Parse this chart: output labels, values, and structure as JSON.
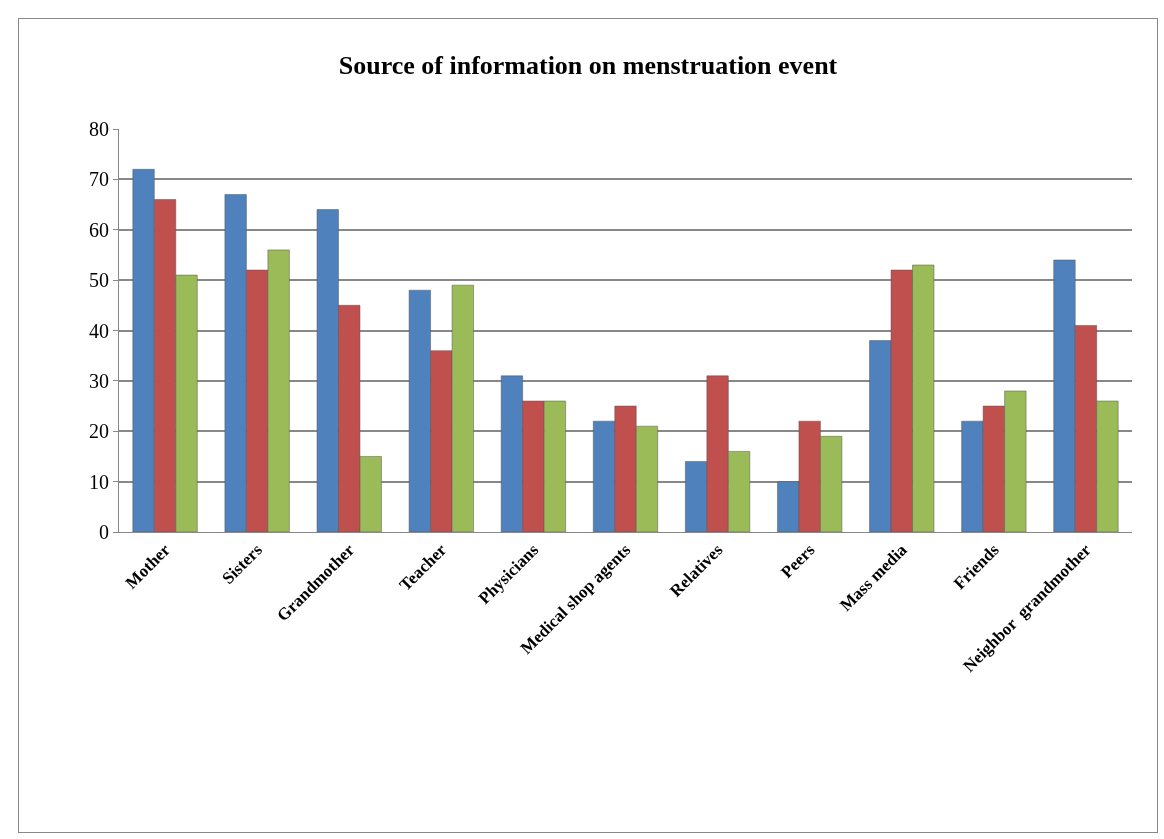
{
  "chart_data": {
    "type": "bar",
    "title": "Source of information on menstruation event",
    "categories": [
      "Mother",
      "Sisters",
      "Grandmother",
      "Teacher",
      "Physicians",
      "Medical shop agents",
      "Relatives",
      "Peers",
      "Mass media",
      "Friends",
      "Neighbor  grandmother"
    ],
    "series": [
      {
        "color": "#4f81bd",
        "values": [
          72,
          67,
          64,
          48,
          31,
          22,
          14,
          10,
          38,
          22,
          54
        ]
      },
      {
        "color": "#c0504d",
        "values": [
          66,
          52,
          45,
          36,
          26,
          25,
          31,
          22,
          52,
          25,
          41
        ]
      },
      {
        "color": "#9bbb59",
        "values": [
          51,
          56,
          15,
          49,
          26,
          21,
          16,
          19,
          53,
          28,
          26
        ]
      }
    ],
    "ylim": [
      0,
      80
    ],
    "yticks": [
      0,
      10,
      20,
      30,
      40,
      50,
      60,
      70,
      80
    ],
    "grid": "y"
  }
}
